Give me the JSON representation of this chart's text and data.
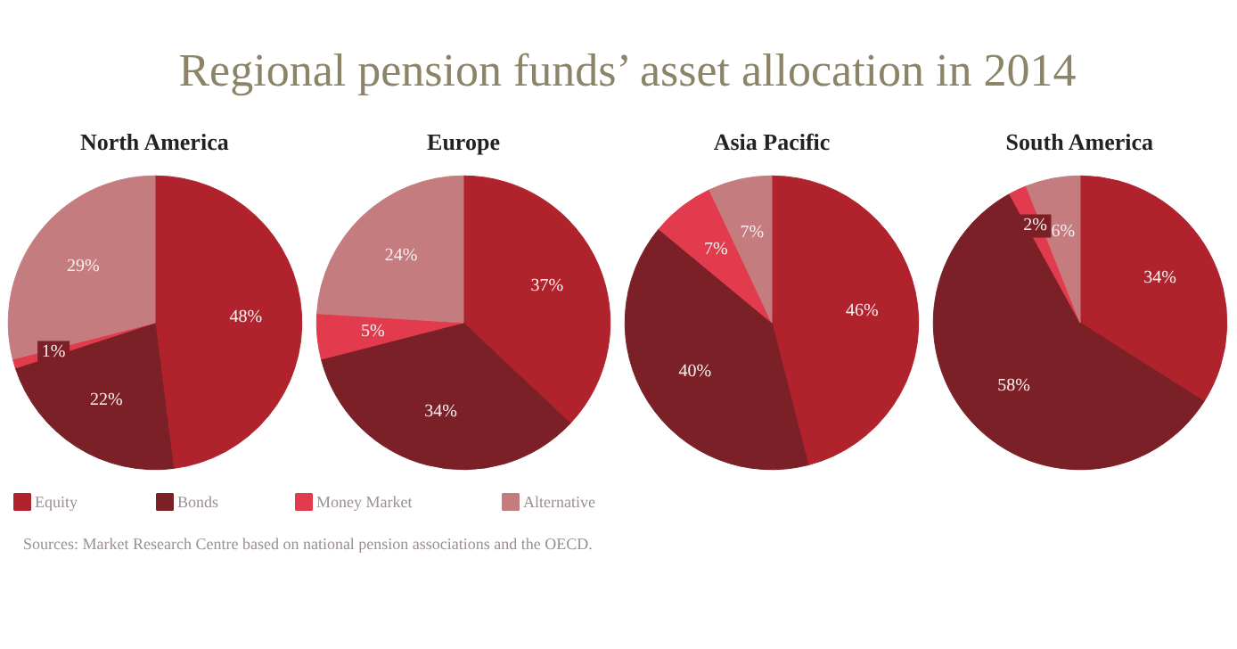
{
  "chart_data": [
    {
      "type": "pie",
      "title": "North America",
      "categories": [
        "Equity",
        "Bonds",
        "Money Market",
        "Alternative"
      ],
      "values": [
        48,
        22,
        1,
        29
      ],
      "value_labels": [
        "48%",
        "22%",
        "1%",
        "29%"
      ],
      "colors": [
        "#b0232d",
        "#7b2027",
        "#e23b4d",
        "#c47c7e"
      ],
      "legend": "bottom",
      "annotations": [
        "Regional pension funds’ asset allocation in 2014",
        "Sources: Market Research Centre based on national pension associations and the OECD."
      ]
    },
    {
      "type": "pie",
      "title": "Europe",
      "categories": [
        null,
        null,
        null,
        null
      ],
      "values": [
        37,
        34,
        5,
        24
      ],
      "value_labels": [
        "37%",
        "34%",
        "5%",
        "24%"
      ],
      "colors": [
        "#b0232d",
        "#7b2027",
        "#e23b4d",
        "#c47c7e"
      ]
    },
    {
      "type": "pie",
      "title": "Asia Pacific",
      "categories": [
        null,
        null,
        null,
        null
      ],
      "values": [
        46,
        40,
        7,
        7
      ],
      "value_labels": [
        "46%",
        "40%",
        "7%",
        "7%"
      ],
      "colors": [
        "#b0232d",
        "#7b2027",
        "#e23b4d",
        "#c47c7e"
      ]
    },
    {
      "type": "pie",
      "title": "South America",
      "categories": [
        null,
        null,
        null,
        null
      ],
      "values": [
        34,
        58,
        2,
        6
      ],
      "value_labels": [
        "34%",
        "58%",
        "2%",
        "6%"
      ],
      "colors": [
        "#b0232d",
        "#7b2027",
        "#e23b4d",
        "#c47c7e"
      ]
    }
  ]
}
